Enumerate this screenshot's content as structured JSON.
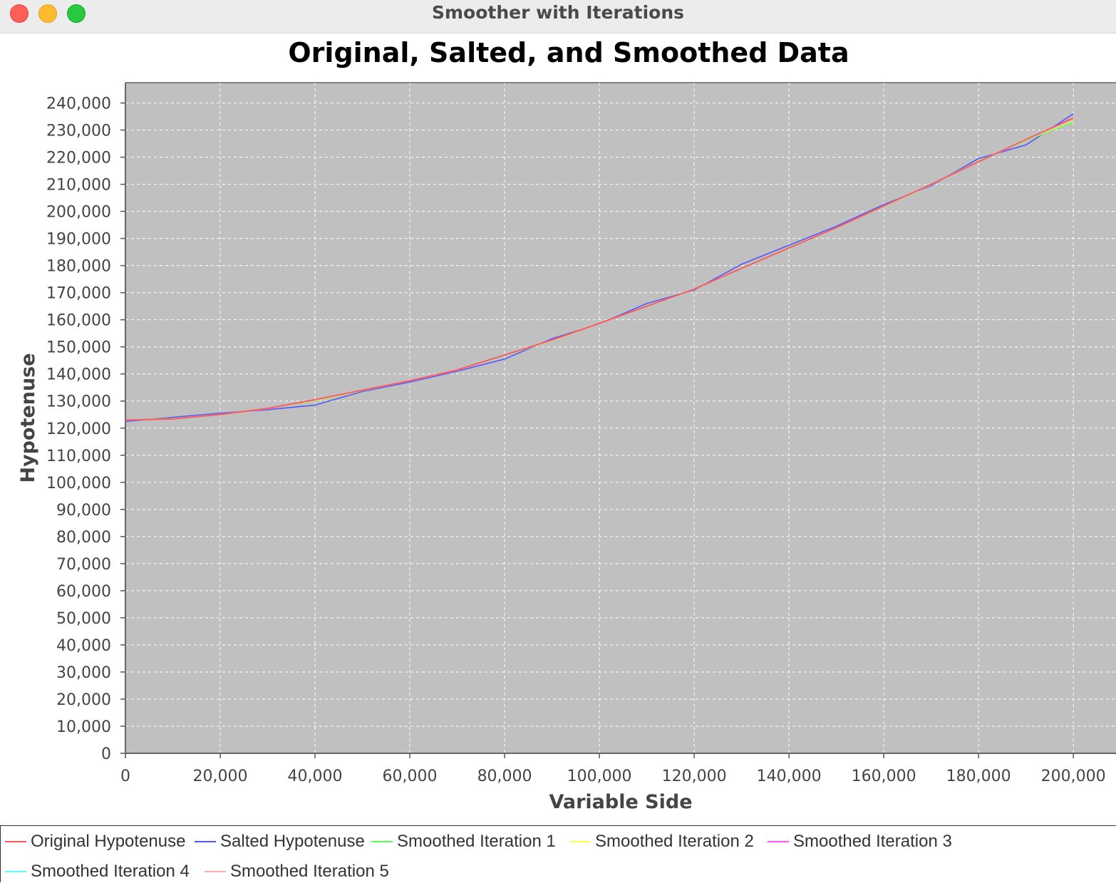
{
  "window": {
    "title": "Smoother with Iterations"
  },
  "colors": {
    "plot_bg": "#c0c0c0",
    "grid": "#ffffff"
  },
  "chart_data": {
    "type": "line",
    "title": "Original, Salted, and Smoothed Data",
    "xlabel": "Variable Side",
    "ylabel": "Hypotenuse",
    "xlim": [
      0,
      209000
    ],
    "ylim": [
      0,
      247500
    ],
    "xticks": [
      0,
      20000,
      40000,
      60000,
      80000,
      100000,
      120000,
      140000,
      160000,
      180000,
      200000
    ],
    "xtick_labels": [
      "0",
      "20,000",
      "40,000",
      "60,000",
      "80,000",
      "100,000",
      "120,000",
      "140,000",
      "160,000",
      "180,000",
      "200,000"
    ],
    "yticks": [
      0,
      10000,
      20000,
      30000,
      40000,
      50000,
      60000,
      70000,
      80000,
      90000,
      100000,
      110000,
      120000,
      130000,
      140000,
      150000,
      160000,
      170000,
      180000,
      190000,
      200000,
      210000,
      220000,
      230000,
      240000
    ],
    "ytick_labels": [
      "0",
      "10,000",
      "20,000",
      "30,000",
      "40,000",
      "50,000",
      "60,000",
      "70,000",
      "80,000",
      "90,000",
      "100,000",
      "110,000",
      "120,000",
      "130,000",
      "140,000",
      "150,000",
      "160,000",
      "170,000",
      "180,000",
      "190,000",
      "200,000",
      "210,000",
      "220,000",
      "230,000",
      "240,000"
    ],
    "grid": true,
    "legend_position": "bottom",
    "x": [
      0,
      10000,
      20000,
      30000,
      40000,
      50000,
      60000,
      70000,
      80000,
      90000,
      100000,
      110000,
      120000,
      130000,
      140000,
      150000,
      160000,
      170000,
      180000,
      190000,
      200000
    ],
    "series": [
      {
        "name": "Original Hypotenuse",
        "color": "#ff5555",
        "values": [
          123000,
          123400,
          125000,
          127300,
          130500,
          134000,
          137500,
          141500,
          147000,
          152500,
          158700,
          165000,
          171300,
          179000,
          186500,
          194000,
          202000,
          210000,
          218300,
          226500,
          234500
        ]
      },
      {
        "name": "Salted Hypotenuse",
        "color": "#5555ff",
        "values": [
          122500,
          124000,
          125500,
          126800,
          128500,
          133500,
          137000,
          141000,
          145500,
          153000,
          158500,
          166000,
          171000,
          180500,
          187500,
          194500,
          202500,
          209500,
          219500,
          224500,
          236000
        ]
      },
      {
        "name": "Smoothed Iteration 1",
        "color": "#55ff55",
        "values": [
          123000,
          123600,
          125100,
          127200,
          130000,
          133900,
          137500,
          141400,
          146800,
          152400,
          158600,
          165100,
          171300,
          179100,
          186600,
          194000,
          201900,
          209900,
          218600,
          226200,
          233000
        ]
      },
      {
        "name": "Smoothed Iteration 2",
        "color": "#ffff55",
        "values": [
          123000,
          123500,
          125000,
          127200,
          130200,
          133900,
          137500,
          141400,
          146900,
          152400,
          158600,
          165000,
          171300,
          179000,
          186500,
          194000,
          201900,
          209900,
          218500,
          226300,
          233500
        ]
      },
      {
        "name": "Smoothed Iteration 3",
        "color": "#ff55ff",
        "values": [
          123000,
          123500,
          125000,
          127200,
          130300,
          134000,
          137500,
          141400,
          146900,
          152500,
          158600,
          165000,
          171300,
          179000,
          186500,
          194000,
          202000,
          210000,
          218400,
          226400,
          234000
        ]
      },
      {
        "name": "Smoothed Iteration 4",
        "color": "#55ffff",
        "values": [
          123000,
          123400,
          125000,
          127300,
          130400,
          134000,
          137500,
          141500,
          146900,
          152500,
          158700,
          165000,
          171300,
          179000,
          186500,
          194000,
          202000,
          210000,
          218300,
          226400,
          234300
        ]
      },
      {
        "name": "Smoothed Iteration 5",
        "color": "#ffafaf",
        "values": [
          123000,
          123400,
          125000,
          127300,
          130400,
          134000,
          137500,
          141500,
          147000,
          152500,
          158700,
          165000,
          171300,
          179000,
          186500,
          194000,
          202000,
          210000,
          218300,
          226500,
          234400
        ]
      }
    ]
  }
}
